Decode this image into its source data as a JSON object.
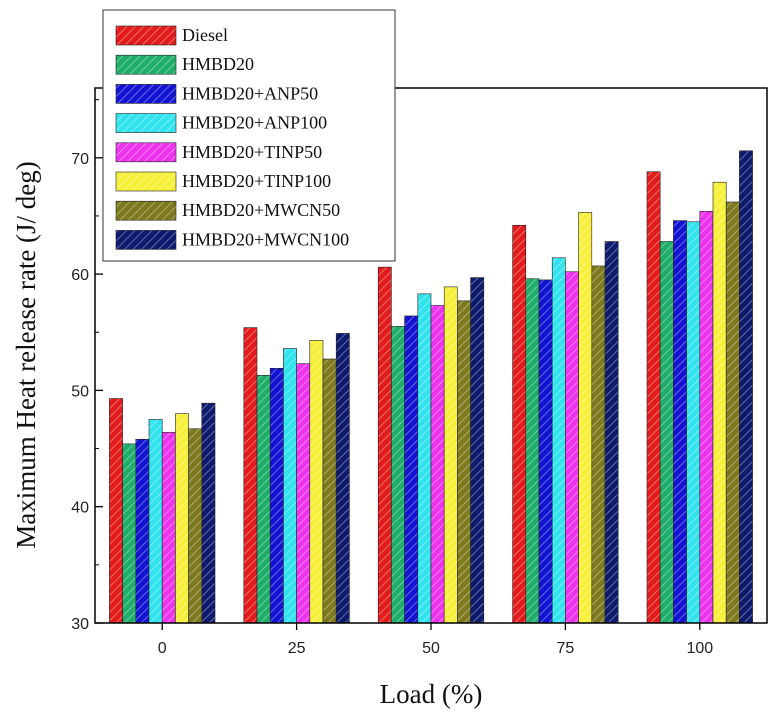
{
  "chart_data": {
    "type": "bar",
    "xlabel": "Load (%)",
    "ylabel": "Maximum Heat release rate (J/ deg)",
    "ylim": [
      30,
      76
    ],
    "yticks": [
      30,
      40,
      50,
      60,
      70
    ],
    "categories": [
      "0",
      "25",
      "50",
      "75",
      "100"
    ],
    "legend_position": "top-left",
    "grid": false,
    "series": [
      {
        "name": "Diesel",
        "color": "#e41b1b",
        "values": [
          49.3,
          55.4,
          60.6,
          64.2,
          68.8
        ]
      },
      {
        "name": "HMBD20",
        "color": "#1fae6a",
        "values": [
          45.4,
          51.3,
          55.5,
          59.6,
          62.8
        ]
      },
      {
        "name": "HMBD20+ANP50",
        "color": "#1313d4",
        "values": [
          45.8,
          51.9,
          56.4,
          59.5,
          64.6
        ]
      },
      {
        "name": "HMBD20+ANP100",
        "color": "#30e3ee",
        "values": [
          47.5,
          53.6,
          58.3,
          61.4,
          64.5
        ]
      },
      {
        "name": "HMBD20+TINP50",
        "color": "#ee33ee",
        "values": [
          46.4,
          52.3,
          57.3,
          60.2,
          65.4
        ]
      },
      {
        "name": "HMBD20+TINP100",
        "color": "#f6f03a",
        "values": [
          48.0,
          54.3,
          58.9,
          65.3,
          67.9
        ]
      },
      {
        "name": "HMBD20+MWCN50",
        "color": "#7d7a1e",
        "values": [
          46.7,
          52.7,
          57.7,
          60.7,
          66.2
        ]
      },
      {
        "name": "HMBD20+MWCN100",
        "color": "#0d1a6e",
        "values": [
          48.9,
          54.9,
          59.7,
          62.8,
          70.6
        ]
      }
    ]
  }
}
